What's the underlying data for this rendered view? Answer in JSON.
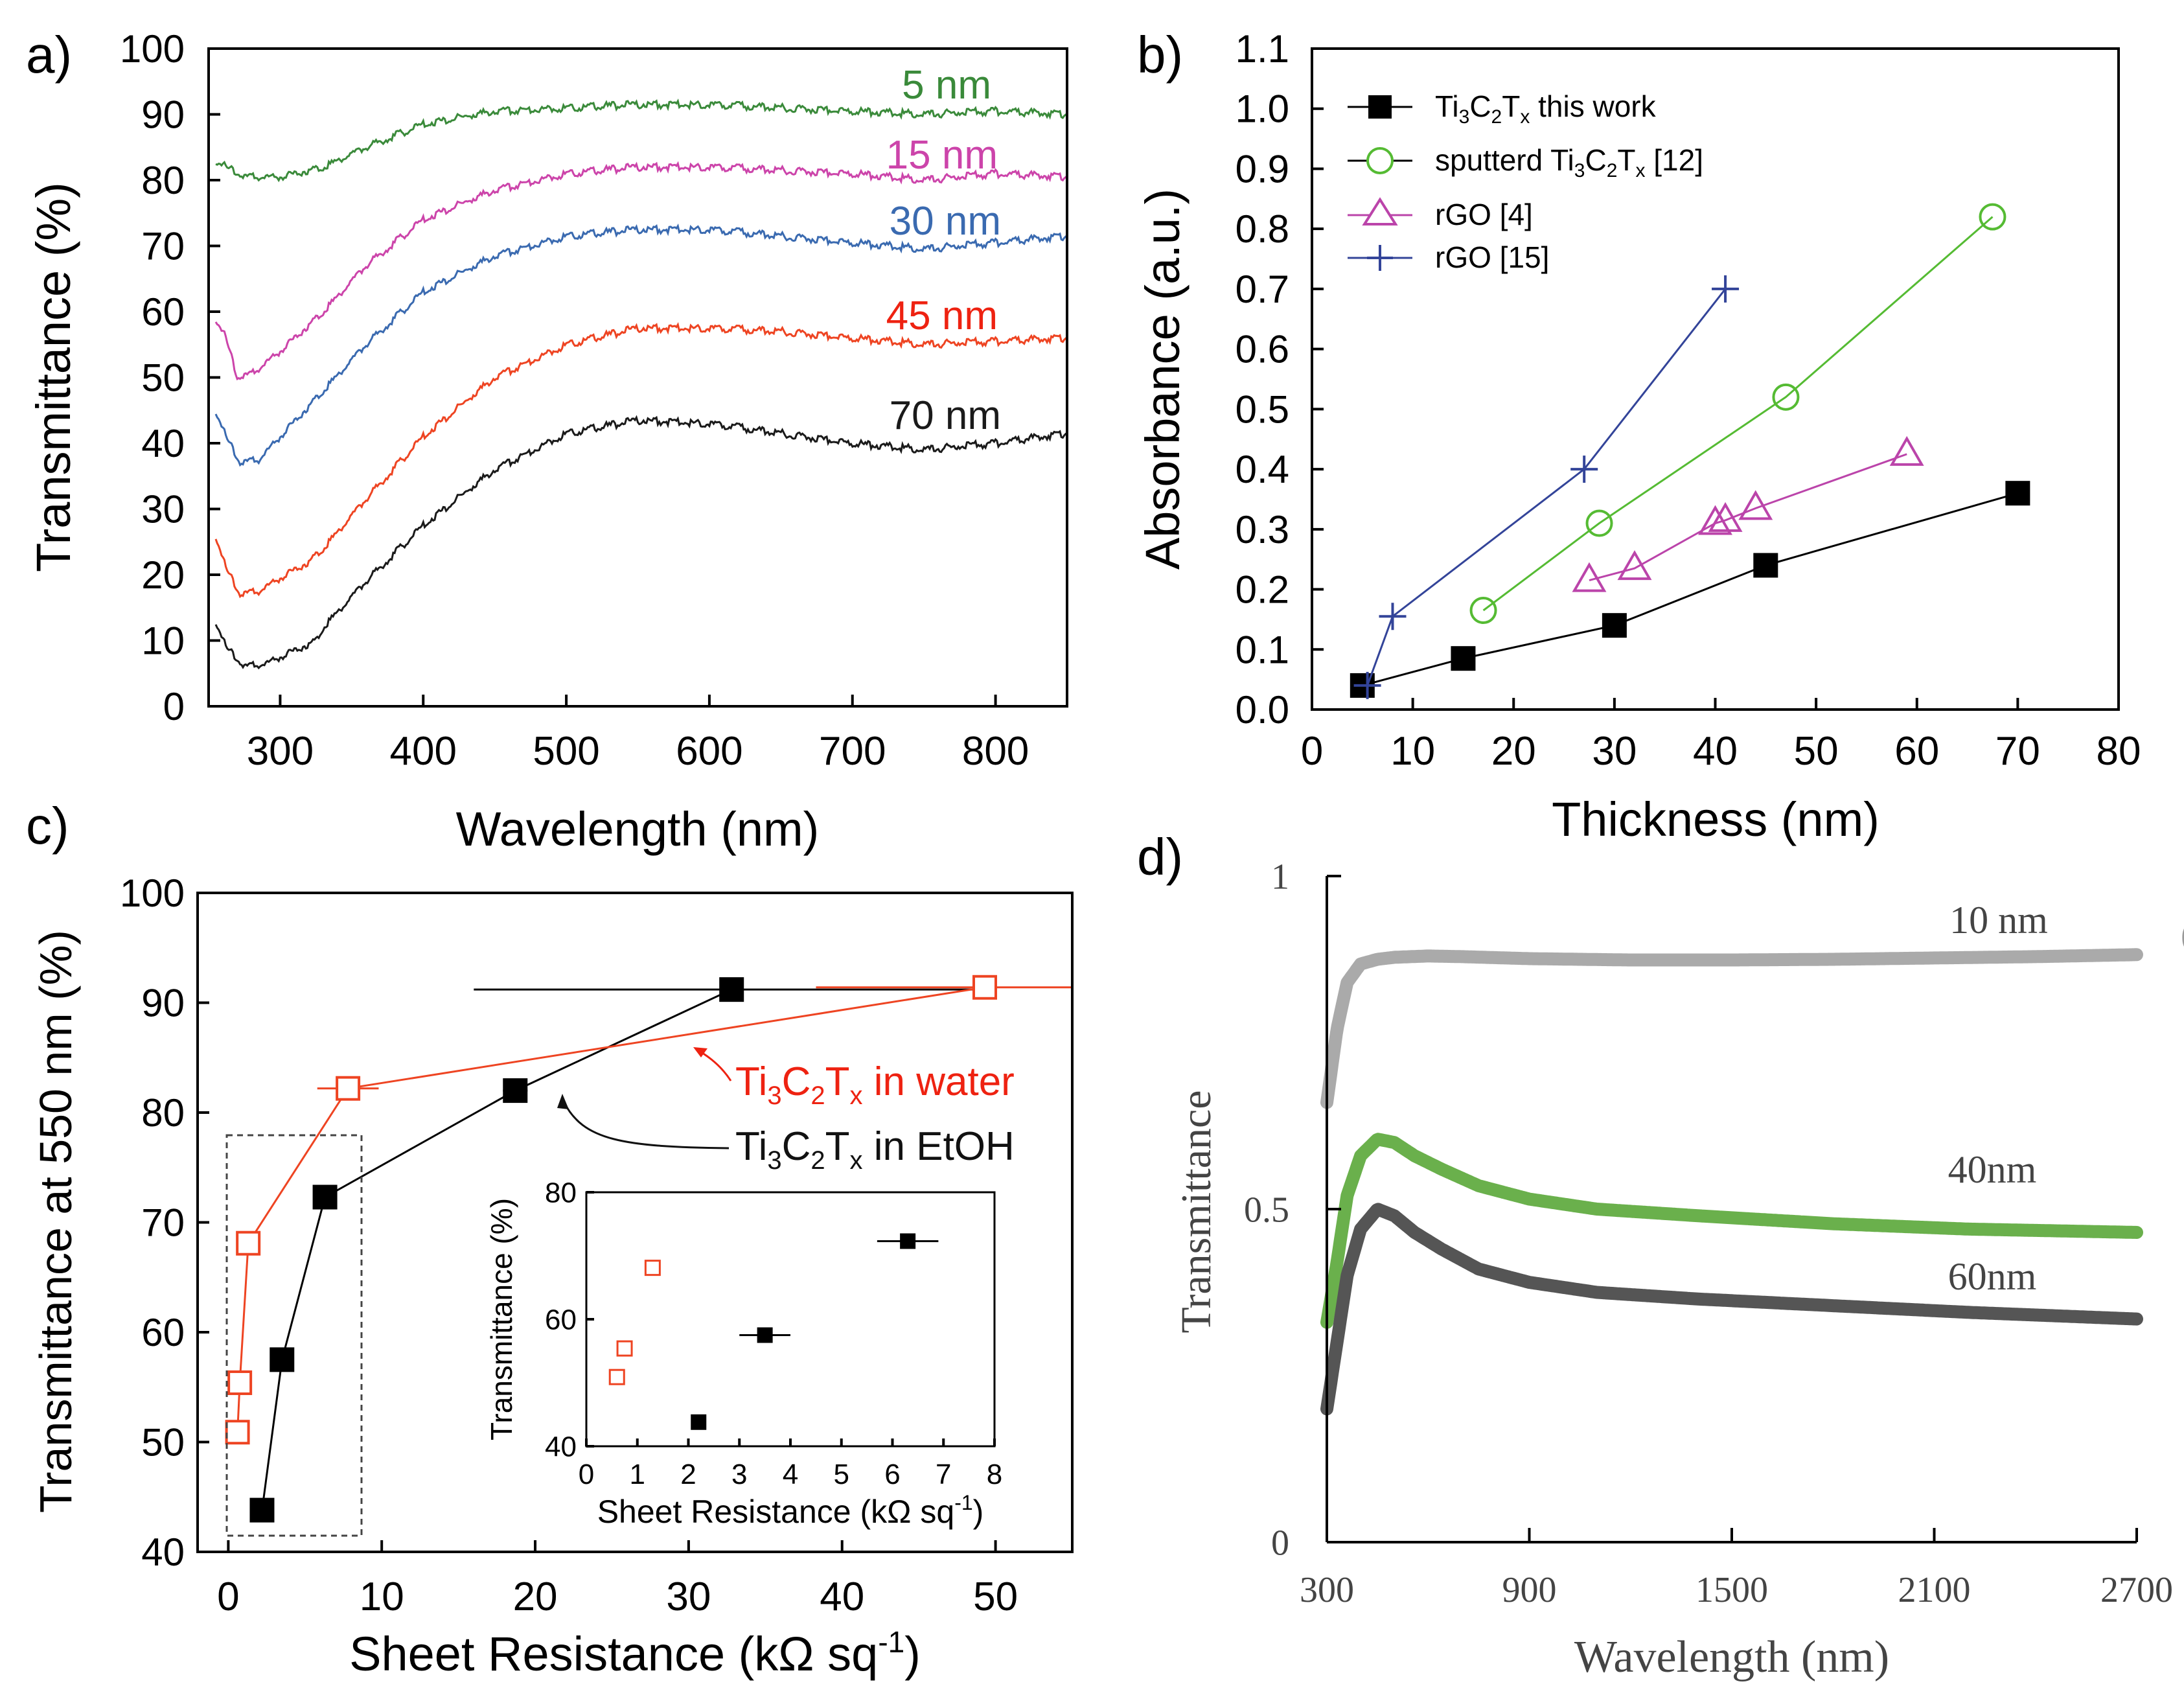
{
  "chart_data": [
    {
      "panel": "a)",
      "type": "line",
      "title": "",
      "xlabel": "Wavelength (nm)",
      "ylabel": "Transmittance (%)",
      "xlim": [
        250,
        850
      ],
      "ylim": [
        0,
        100
      ],
      "xticks": [
        300,
        400,
        500,
        600,
        700,
        800
      ],
      "yticks": [
        0,
        10,
        20,
        30,
        40,
        50,
        60,
        70,
        80,
        90,
        100
      ],
      "series": [
        {
          "name": "5 nm",
          "color": "#3a8a3a",
          "x": [
            255,
            262,
            275,
            300,
            330,
            360,
            400,
            450,
            500,
            550,
            600,
            650,
            700,
            750,
            800,
            850
          ],
          "y": [
            83,
            82,
            80.5,
            80.5,
            82,
            85,
            88.5,
            90.5,
            91,
            91.5,
            91.5,
            91,
            90.5,
            90,
            90.5,
            90
          ]
        },
        {
          "name": "15 nm",
          "color": "#cc44aa",
          "x": [
            255,
            262,
            270,
            280,
            300,
            330,
            360,
            400,
            450,
            500,
            550,
            600,
            650,
            700,
            750,
            800,
            850
          ],
          "y": [
            59,
            56,
            50,
            50.5,
            54,
            60,
            67,
            74,
            78.5,
            81,
            82,
            82,
            81.5,
            81,
            80,
            81,
            80.5
          ]
        },
        {
          "name": "30 nm",
          "color": "#3a6ab0",
          "x": [
            255,
            262,
            272,
            285,
            300,
            330,
            360,
            400,
            450,
            500,
            550,
            600,
            650,
            700,
            750,
            800,
            850
          ],
          "y": [
            45,
            41,
            37,
            37.5,
            41,
            48,
            55,
            63,
            68.5,
            71.5,
            72.5,
            72.5,
            71.5,
            70.5,
            69.5,
            70.5,
            71.5
          ]
        },
        {
          "name": "45 nm",
          "color": "#ee4422",
          "x": [
            255,
            262,
            272,
            285,
            300,
            320,
            330,
            360,
            400,
            450,
            500,
            550,
            600,
            650,
            700,
            750,
            800,
            850
          ],
          "y": [
            26,
            21,
            17,
            17.5,
            19.5,
            22,
            24,
            31.5,
            41,
            50,
            55,
            57.5,
            57.5,
            57,
            56,
            55,
            55.5,
            56
          ]
        },
        {
          "name": "70 nm",
          "color": "#1a1a1a",
          "x": [
            255,
            262,
            275,
            290,
            310,
            325,
            330,
            360,
            400,
            450,
            500,
            550,
            600,
            650,
            700,
            750,
            800,
            850
          ],
          "y": [
            13,
            9,
            6,
            6.5,
            8.5,
            10,
            12,
            19,
            27.5,
            36,
            41.5,
            43.5,
            43,
            41.5,
            40,
            39,
            40,
            41.5
          ]
        }
      ]
    },
    {
      "panel": "b)",
      "type": "line",
      "title": "",
      "xlabel": "Thickness (nm)",
      "ylabel": "Absorbance (a.u.)",
      "xlim": [
        0,
        80
      ],
      "ylim": [
        0.0,
        1.1
      ],
      "xticks": [
        0,
        10,
        20,
        30,
        40,
        50,
        60,
        70,
        80
      ],
      "yticks": [
        "0.0",
        "0.1",
        "0.2",
        "0.3",
        "0.4",
        "0.5",
        "0.6",
        "0.7",
        "0.8",
        "0.9",
        "1.0",
        "1.1"
      ],
      "legend_position": "top-left",
      "series": [
        {
          "name": "Ti3C2Tx this work",
          "color": "#000000",
          "marker": "filled-square",
          "x": [
            5,
            15,
            30,
            45,
            70
          ],
          "y": [
            0.04,
            0.085,
            0.14,
            0.24,
            0.36
          ]
        },
        {
          "name": "sputterd Ti3C2Tx [12]",
          "color": "#55bb33",
          "marker": "open-circle",
          "x": [
            17,
            28.5,
            47,
            67.5
          ],
          "y": [
            0.165,
            0.31,
            0.52,
            0.82
          ]
        },
        {
          "name": "rGO [4]",
          "color": "#bb44aa",
          "marker": "open-triangle",
          "x": [
            27.5,
            32,
            40,
            41,
            44,
            59
          ],
          "y": [
            0.215,
            0.235,
            0.31,
            0.315,
            0.335,
            0.425
          ]
        },
        {
          "name": "rGO [15]",
          "color": "#334499",
          "marker": "plus",
          "x": [
            5.5,
            8,
            27,
            41
          ],
          "y": [
            0.04,
            0.155,
            0.4,
            0.7
          ]
        }
      ]
    },
    {
      "panel": "c)",
      "type": "scatter",
      "title": "",
      "xlabel": "Sheet Resistance (kΩ sq⁻¹)",
      "ylabel": "Transmittance at 550 nm (%)",
      "xlim": [
        -2,
        55
      ],
      "ylim": [
        40,
        100
      ],
      "xticks": [
        0,
        10,
        20,
        30,
        40,
        50
      ],
      "yticks": [
        40,
        50,
        60,
        70,
        80,
        90,
        100
      ],
      "series": [
        {
          "name": "Ti3C2Tx in EtOH",
          "color": "#000000",
          "marker": "filled-square",
          "x": [
            2.2,
            3.5,
            6.3,
            18.7,
            32.8
          ],
          "y": [
            43.8,
            57.5,
            72.3,
            82,
            91.2
          ],
          "xerr": [
            0.2,
            0.5,
            0.6,
            0.8,
            16.8
          ]
        },
        {
          "name": "Ti3C2Tx in water",
          "color": "#ee4422",
          "marker": "open-square",
          "x": [
            0.6,
            0.75,
            1.3,
            7.8,
            49.3
          ],
          "y": [
            50.9,
            55.4,
            68.1,
            82.2,
            91.4
          ],
          "xerr": [
            0.05,
            0.05,
            0.1,
            2,
            11
          ]
        }
      ],
      "annotations": [
        "Ti3C2Tx in water",
        "Ti3C2Tx in EtOH"
      ],
      "inset": {
        "xlabel": "Sheet Resistance (kΩ sq⁻¹)",
        "ylabel": "Transmittance (%)",
        "xlim": [
          0,
          8
        ],
        "ylim": [
          40,
          80
        ],
        "xticks": [
          0,
          1,
          2,
          3,
          4,
          5,
          6,
          7,
          8
        ],
        "yticks": [
          40,
          60,
          80
        ]
      }
    },
    {
      "panel": "d)",
      "type": "line",
      "title": "",
      "xlabel": "Wavelength (nm)",
      "ylabel": "Transmittance",
      "xlim": [
        300,
        2700
      ],
      "ylim": [
        0,
        1
      ],
      "xticks": [
        300,
        900,
        1500,
        2100,
        2700
      ],
      "yticks": [
        "0",
        "0.5",
        "1"
      ],
      "series": [
        {
          "name": "10 nm",
          "color": "#aaaaaa",
          "x": [
            300,
            330,
            360,
            400,
            450,
            500,
            600,
            700,
            900,
            1200,
            1500,
            1800,
            2100,
            2400,
            2700
          ],
          "y": [
            0.66,
            0.77,
            0.84,
            0.868,
            0.875,
            0.878,
            0.88,
            0.879,
            0.876,
            0.874,
            0.874,
            0.875,
            0.877,
            0.879,
            0.882
          ]
        },
        {
          "name": "40nm",
          "color": "#6ab04c",
          "x": [
            300,
            330,
            360,
            400,
            450,
            500,
            560,
            640,
            750,
            900,
            1100,
            1400,
            1800,
            2200,
            2700
          ],
          "y": [
            0.33,
            0.42,
            0.52,
            0.58,
            0.605,
            0.6,
            0.58,
            0.56,
            0.535,
            0.515,
            0.5,
            0.49,
            0.478,
            0.47,
            0.465
          ]
        },
        {
          "name": "60nm",
          "color": "#555555",
          "x": [
            300,
            330,
            360,
            400,
            450,
            500,
            560,
            640,
            750,
            900,
            1100,
            1400,
            1800,
            2200,
            2700
          ],
          "y": [
            0.2,
            0.3,
            0.4,
            0.47,
            0.5,
            0.49,
            0.465,
            0.44,
            0.41,
            0.39,
            0.375,
            0.365,
            0.355,
            0.345,
            0.335
          ]
        }
      ]
    }
  ]
}
